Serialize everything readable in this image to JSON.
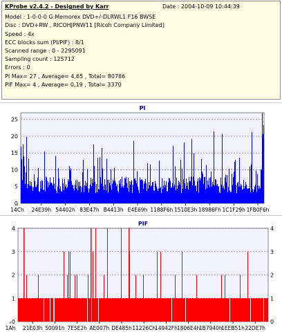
{
  "header": {
    "title": "KProbe v2.4.2 - Designed by Karr",
    "date": "Date : 2004-10-09 10:44:39",
    "lines": [
      "Model : 1-0-0-0 G:Memorex DVD+/-DLRWL1 F16 BWSE",
      "Disc : DVD+RW , RICOHJPNW11 [Ricoh Company Limited]",
      "Speed : 4x",
      "ECC blocks sum (PI/PIF) : 8/1",
      "Scanned range : 0 - 2295091",
      "Sampling count : 125712",
      "Errors : 0",
      "PI Max= 27 , Average= 4,65 , Total= 80786",
      "PIF Max= 4 , Average= 0,19 , Total= 3370"
    ]
  },
  "chart_data": [
    {
      "type": "bar",
      "title": "PI",
      "color": "#0000ff",
      "ylim": [
        0,
        27
      ],
      "yticks": [
        0,
        5,
        10,
        15,
        20,
        25
      ],
      "xtick_labels": [
        "14Ch",
        "24E39h",
        "54402h",
        "83E47h",
        "B4413h",
        "E4E69h",
        "1188F6h",
        "1510E3h",
        "18986Fh",
        "1C1F29h",
        "1FB0F6h"
      ],
      "grid": true,
      "values_summary": {
        "max": 27,
        "average": 4.65,
        "total": 80786
      }
    },
    {
      "type": "bar",
      "title": "PIF",
      "color": "#ff0000",
      "ylim": [
        0,
        4
      ],
      "yticks": [
        0,
        1,
        2,
        3,
        4
      ],
      "xtick_labels": [
        "1Ah",
        "21E03h",
        "50091h",
        "7E5E2h",
        "AE007h",
        "DE485h",
        "11226Ch",
        "14942Fh",
        "1806E4h",
        "1B7940h",
        "1EEB51h",
        "22DE7h"
      ],
      "grid": true,
      "values_summary": {
        "max": 4,
        "average": 0.19,
        "total": 3370
      }
    }
  ]
}
